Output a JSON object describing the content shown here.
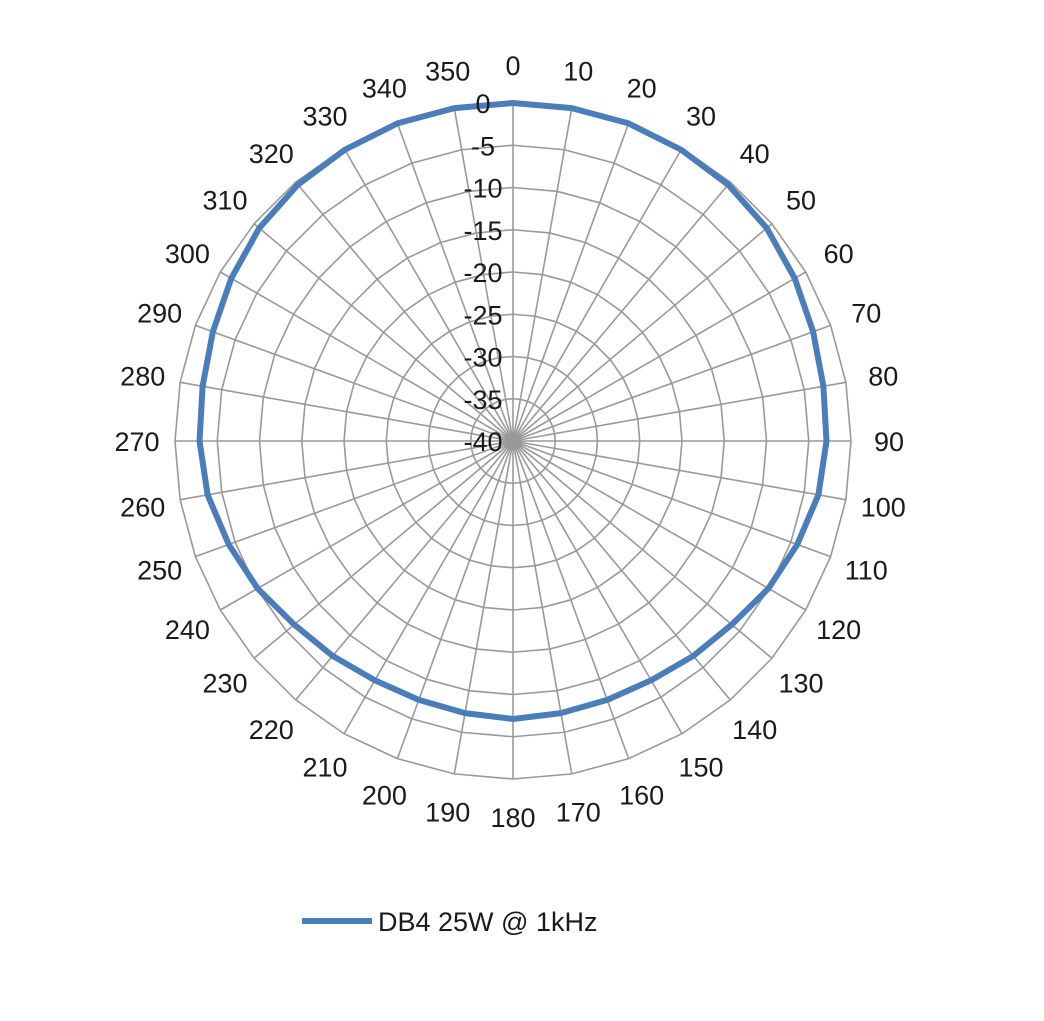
{
  "chart_data": {
    "type": "polar-line",
    "title": "",
    "angle_unit": "degrees",
    "angles": [
      0,
      10,
      20,
      30,
      40,
      50,
      60,
      70,
      80,
      90,
      100,
      110,
      120,
      130,
      140,
      150,
      160,
      170,
      180,
      190,
      200,
      210,
      220,
      230,
      240,
      250,
      260,
      270,
      280,
      290,
      300,
      310,
      320,
      330,
      340,
      350
    ],
    "angle_labels": [
      "0",
      "10",
      "20",
      "30",
      "40",
      "50",
      "60",
      "70",
      "80",
      "90",
      "100",
      "110",
      "120",
      "130",
      "140",
      "150",
      "160",
      "170",
      "180",
      "190",
      "200",
      "210",
      "220",
      "230",
      "240",
      "250",
      "260",
      "270",
      "280",
      "290",
      "300",
      "310",
      "320",
      "330",
      "340",
      "350"
    ],
    "radial_range": [
      -40,
      0
    ],
    "radial_ticks": [
      0,
      -5,
      -10,
      -15,
      -20,
      -25,
      -30,
      -35,
      -40
    ],
    "radial_tick_labels": [
      "0",
      "-5",
      "-10",
      "-15",
      "-20",
      "-25",
      "-30",
      "-35",
      "-40"
    ],
    "grid": true,
    "legend_position": "bottom",
    "series": [
      {
        "name": "DB4 25W @ 1kHz",
        "color": "#4a7ebb",
        "values": [
          0,
          0,
          0,
          -0.2,
          -0.4,
          -0.8,
          -1.5,
          -2.2,
          -2.7,
          -2.9,
          -3.3,
          -4.2,
          -5.1,
          -6.2,
          -6.8,
          -7.3,
          -7.4,
          -7.3,
          -7.1,
          -7.3,
          -7.4,
          -7.3,
          -6.8,
          -6.2,
          -5.1,
          -4.2,
          -3.3,
          -2.9,
          -2.7,
          -2.2,
          -1.5,
          -0.8,
          -0.4,
          -0.2,
          0,
          0
        ]
      }
    ]
  }
}
